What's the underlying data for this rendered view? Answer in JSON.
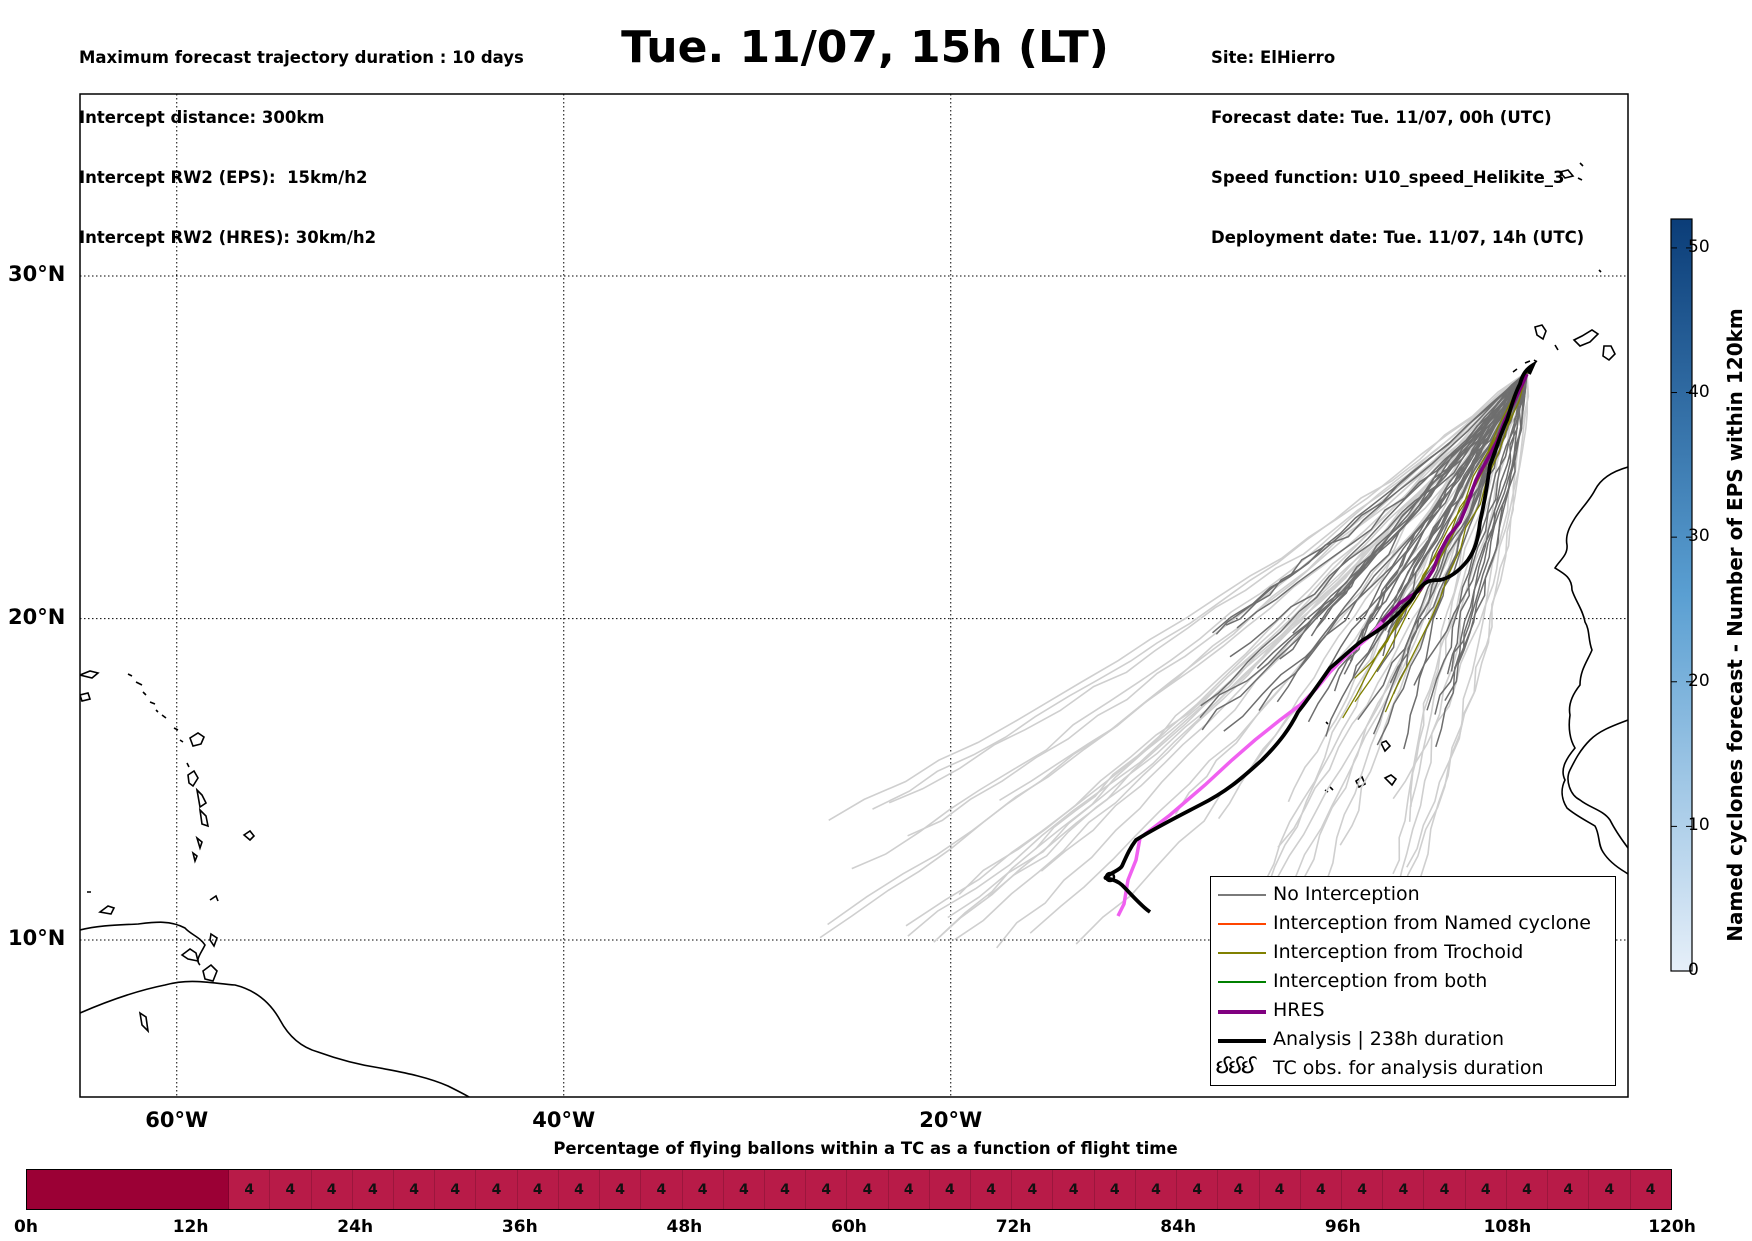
{
  "header": {
    "left_lines": [
      "Maximum forecast trajectory duration : 10 days",
      "Intercept distance: 300km",
      "Intercept RW2 (EPS):  15km/h2",
      "Intercept RW2 (HRES): 30km/h2"
    ],
    "title": "Tue. 11/07, 15h (LT)",
    "right_lines": [
      "Site: ElHierro",
      "Forecast date: Tue. 11/07, 00h (UTC)",
      "Speed function: U10_speed_Helikite_3",
      "Deployment date: Tue. 11/07, 14h (UTC)"
    ]
  },
  "map": {
    "lon_range": [
      -65,
      15
    ],
    "lat_range": [
      5,
      34
    ],
    "lat_labels": [
      {
        "lat": 30,
        "label": "30°N"
      },
      {
        "lat": 20,
        "label": "20°N"
      },
      {
        "lat": 10,
        "label": "10°N"
      }
    ],
    "lon_labels": [
      {
        "lon": -60,
        "label": "60°W"
      },
      {
        "lon": -40,
        "label": "40°W"
      },
      {
        "lon": -20,
        "label": "20°W"
      }
    ],
    "colors": {
      "eps": "#6e6e6e",
      "eps_light": "#cfcfcf",
      "hres": "#800080",
      "hres_light": "#f060f0",
      "analysis": "#000000",
      "named_cyclone": "#ff4500",
      "trochoid": "#808000",
      "both": "#008000"
    }
  },
  "colorbar": {
    "label": "Named cyclones forecast - Number of EPS within 120km",
    "range": [
      0,
      52
    ],
    "ticks": [
      "0",
      "10",
      "20",
      "30",
      "40",
      "50"
    ],
    "color_low": "#e6eff9",
    "color_high": "#0b3d78"
  },
  "legend": {
    "items": [
      {
        "label": "No Interception",
        "color": "#7a7a7a",
        "style": "thin"
      },
      {
        "label": "Interception from Named cyclone",
        "color": "#ff4500",
        "style": "thin"
      },
      {
        "label": "Interception from Trochoid",
        "color": "#808000",
        "style": "thin"
      },
      {
        "label": "Interception from both",
        "color": "#008000",
        "style": "thin"
      },
      {
        "label": "HRES",
        "color": "#800080",
        "style": "thick"
      },
      {
        "label": "Analysis | 238h duration",
        "color": "#000000",
        "style": "thick"
      },
      {
        "label": "TC obs. for analysis duration",
        "color": "#000000",
        "style": "symbol",
        "symbol": "ઈઈઈ"
      }
    ]
  },
  "bar": {
    "title": "Percentage of flying ballons within a TC as a function of flight time",
    "dark_color": "#9b0035",
    "light_color": "#b81b48",
    "dark_cells": 5,
    "cell_values": [
      "",
      "",
      "",
      "",
      "",
      "4",
      "4",
      "4",
      "4",
      "4",
      "4",
      "4",
      "4",
      "4",
      "4",
      "4",
      "4",
      "4",
      "4",
      "4",
      "4",
      "4",
      "4",
      "4",
      "4",
      "4",
      "4",
      "4",
      "4",
      "4",
      "4",
      "4",
      "4",
      "4",
      "4",
      "4",
      "4",
      "4",
      "4",
      "4"
    ],
    "time_labels": [
      "0h",
      "12h",
      "24h",
      "36h",
      "48h",
      "60h",
      "72h",
      "84h",
      "96h",
      "108h",
      "120h"
    ]
  }
}
